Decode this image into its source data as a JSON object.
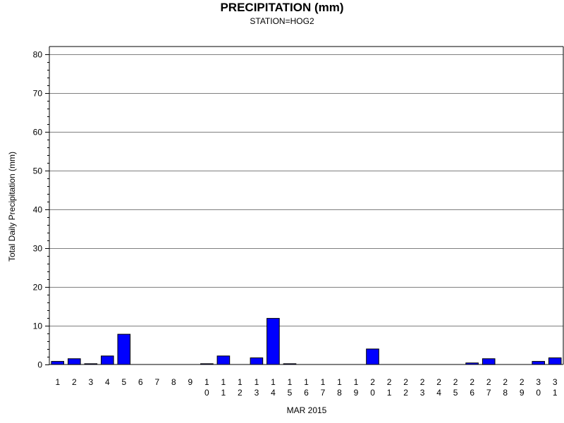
{
  "chart_data": {
    "type": "bar",
    "title": "PRECIPITATION (mm)",
    "subtitle": "STATION=HOG2",
    "xlabel": "MAR 2015",
    "ylabel": "Total Daily Precipitation (mm)",
    "ylim": [
      0,
      80
    ],
    "yticks": [
      0,
      10,
      20,
      30,
      40,
      50,
      60,
      70,
      80
    ],
    "grid": true,
    "bar_color": "#0000ff",
    "categories": [
      "1",
      "2",
      "3",
      "4",
      "5",
      "6",
      "7",
      "8",
      "9",
      "10",
      "11",
      "12",
      "13",
      "14",
      "15",
      "16",
      "17",
      "18",
      "19",
      "20",
      "21",
      "22",
      "23",
      "24",
      "25",
      "26",
      "27",
      "28",
      "29",
      "30",
      "31"
    ],
    "values": [
      0.8,
      1.5,
      0.2,
      2.2,
      7.8,
      0,
      0,
      0,
      0,
      0.2,
      2.2,
      0,
      1.7,
      11.9,
      0.2,
      0,
      0,
      0,
      0,
      4.0,
      0,
      0,
      0,
      0,
      0,
      0.4,
      1.5,
      0,
      0,
      0.8,
      1.7
    ]
  }
}
